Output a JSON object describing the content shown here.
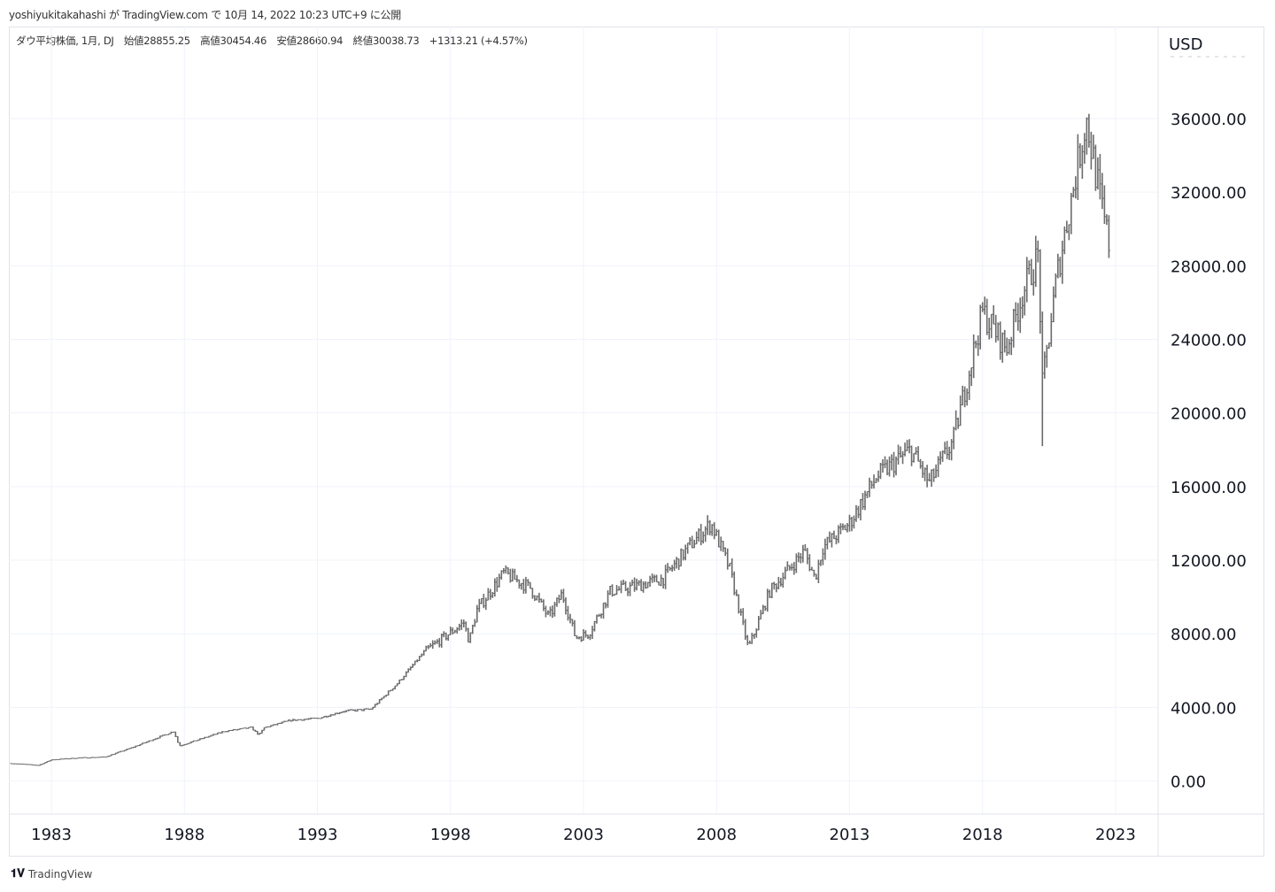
{
  "publish_line": "yoshiyukitakahashi が TradingView.com で 10月 14, 2022 10:23 UTC+9 に公開",
  "legend": {
    "symbol": "ダウ平均株価, 1月, DJ",
    "open": "始値28855.25",
    "high": "高値30454.46",
    "low": "安値28660.94",
    "close": "終値30038.73",
    "change": "+1313.21 (+4.57%)"
  },
  "brand": "TradingView",
  "chart_data": {
    "type": "bar",
    "title": "ダウ平均株価, 1月, DJ",
    "currency": "USD",
    "y_ticks": [
      "36000.00",
      "32000.00",
      "28000.00",
      "24000.00",
      "20000.00",
      "16000.00",
      "12000.00",
      "8000.00",
      "4000.00",
      "0.00"
    ],
    "y_tick_values": [
      36000,
      32000,
      28000,
      24000,
      20000,
      16000,
      12000,
      8000,
      4000,
      0
    ],
    "x_ticks": [
      "1983",
      "1988",
      "1993",
      "1998",
      "2003",
      "2008",
      "2013",
      "2018",
      "2023"
    ],
    "x_tick_values": [
      1983,
      1988,
      1993,
      1998,
      2003,
      2008,
      2013,
      2018,
      2023
    ],
    "ylim": [
      -1800,
      41000
    ],
    "xlim": [
      1981.4,
      2024.6
    ],
    "grid": true,
    "series_color": "#6b6b6b",
    "key_closes": [
      [
        1981.5,
        950
      ],
      [
        1982.5,
        850
      ],
      [
        1983,
        1150
      ],
      [
        1984,
        1250
      ],
      [
        1985,
        1300
      ],
      [
        1986,
        1800
      ],
      [
        1987.6,
        2700
      ],
      [
        1987.8,
        1900
      ],
      [
        1988,
        2000
      ],
      [
        1989.5,
        2700
      ],
      [
        1990.5,
        2900
      ],
      [
        1990.8,
        2500
      ],
      [
        1991,
        2900
      ],
      [
        1992,
        3300
      ],
      [
        1993,
        3400
      ],
      [
        1994,
        3800
      ],
      [
        1995,
        3900
      ],
      [
        1996,
        5300
      ],
      [
        1997,
        7000
      ],
      [
        1998.5,
        8600
      ],
      [
        1998.7,
        7600
      ],
      [
        1999,
        9300
      ],
      [
        2000,
        11300
      ],
      [
        2001,
        10500
      ],
      [
        2001.7,
        8900
      ],
      [
        2002.2,
        10200
      ],
      [
        2002.7,
        7800
      ],
      [
        2003.2,
        8000
      ],
      [
        2004,
        10300
      ],
      [
        2005,
        10600
      ],
      [
        2006,
        11000
      ],
      [
        2007,
        12800
      ],
      [
        2007.8,
        14000
      ],
      [
        2008.5,
        11500
      ],
      [
        2009.2,
        7200
      ],
      [
        2010,
        10300
      ],
      [
        2011.3,
        12500
      ],
      [
        2011.7,
        11000
      ],
      [
        2012,
        12700
      ],
      [
        2013,
        14000
      ],
      [
        2014,
        16500
      ],
      [
        2015.3,
        18000
      ],
      [
        2016,
        16200
      ],
      [
        2016.9,
        18500
      ],
      [
        2018,
        25500
      ],
      [
        2018.9,
        23500
      ],
      [
        2019.5,
        26500
      ],
      [
        2020.1,
        28600
      ],
      [
        2020.25,
        21500
      ],
      [
        2020.8,
        27500
      ],
      [
        2021.9,
        36000
      ],
      [
        2022.2,
        33500
      ],
      [
        2022.5,
        31000
      ],
      [
        2022.75,
        29200
      ]
    ],
    "notable_low": [
      2020.25,
      18200
    ],
    "last_bar": {
      "open": 28855.25,
      "high": 30454.46,
      "low": 28660.94,
      "close": 30038.73
    }
  }
}
